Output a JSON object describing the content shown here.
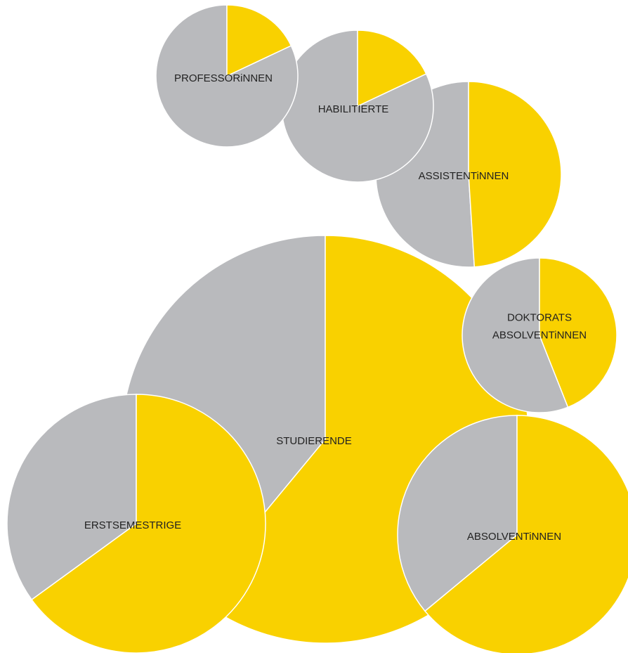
{
  "chart_data": {
    "type": "pie",
    "colors": {
      "female": "#F9D100",
      "male": "#B9BABD",
      "stroke": "#FFFFFF",
      "text": "#222222"
    },
    "pies": [
      {
        "id": "studierende",
        "label_lines": [
          "STUDIERENDE"
        ],
        "share_female": 0.61
      },
      {
        "id": "erstsemestrige",
        "label_lines": [
          "ERSTSEMESTRIGE"
        ],
        "share_female": 0.65
      },
      {
        "id": "absolventinnen",
        "label_lines": [
          "ABSOLVENTiNNEN"
        ],
        "share_female": 0.64
      },
      {
        "id": "doktorats-absolventinnen",
        "label_lines": [
          "DOKTORATS",
          "ABSOLVENTiNNEN"
        ],
        "share_female": 0.44
      },
      {
        "id": "assistentinnen",
        "label_lines": [
          "ASSISTENTiNNEN"
        ],
        "share_female": 0.49
      },
      {
        "id": "habilitierte",
        "label_lines": [
          "HABILITIERTE"
        ],
        "share_female": 0.18
      },
      {
        "id": "professorinnen",
        "label_lines": [
          "PROFESSORiNNEN"
        ],
        "share_female": 0.18
      }
    ]
  }
}
